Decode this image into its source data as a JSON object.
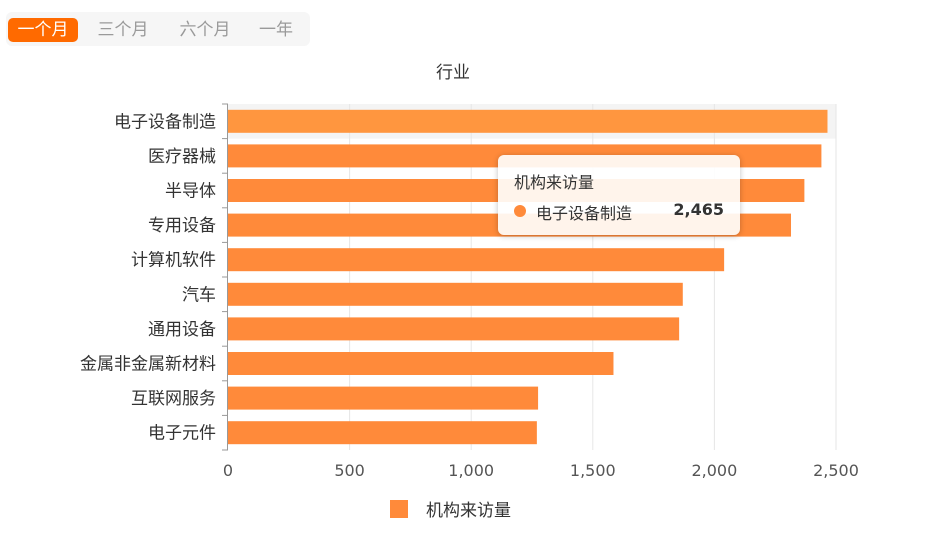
{
  "tabs": [
    {
      "label": "一个月",
      "active": true
    },
    {
      "label": "三个月",
      "active": false
    },
    {
      "label": "六个月",
      "active": false
    },
    {
      "label": "一年",
      "active": false
    }
  ],
  "colors": {
    "accent": "#ff6a00",
    "bar": "#ff8a3a",
    "bar_highlight": "#ff963f"
  },
  "tooltip": {
    "title": "机构来访量",
    "series_name": "电子设备制造",
    "value": "2,465"
  },
  "chart_data": {
    "type": "bar",
    "orientation": "horizontal",
    "title": "行业",
    "categories": [
      "电子设备制造",
      "医疗器械",
      "半导体",
      "专用设备",
      "计算机软件",
      "汽车",
      "通用设备",
      "金属非金属新材料",
      "互联网服务",
      "电子元件"
    ],
    "series": [
      {
        "name": "机构来访量",
        "values": [
          2465,
          2440,
          2370,
          2315,
          2040,
          1870,
          1855,
          1585,
          1275,
          1270
        ]
      }
    ],
    "xlim": [
      0,
      2500
    ],
    "xticks": [
      0,
      500,
      1000,
      1500,
      2000,
      2500
    ],
    "xtick_labels": [
      "0",
      "500",
      "1,000",
      "1,500",
      "2,000",
      "2,500"
    ],
    "grid": true,
    "legend_position": "bottom",
    "highlighted_category": "电子设备制造"
  }
}
